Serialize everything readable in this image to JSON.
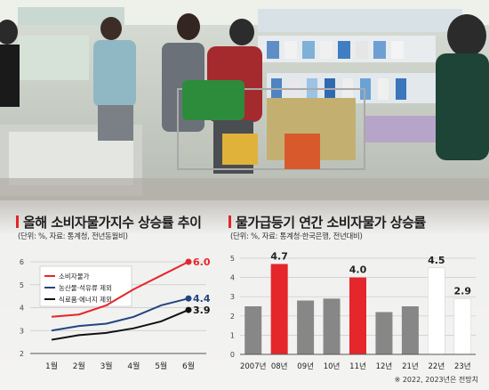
{
  "colors": {
    "red": "#e5262b",
    "navy": "#23467e",
    "black": "#111111",
    "gray": "#878787",
    "white": "#ffffff"
  },
  "left_panel": {
    "title": "올해 소비자물가지수 상승률 추이",
    "subtitle": "(단위: %, 자료: 통계청, 전년동월비)"
  },
  "right_panel": {
    "title": "물가급등기 연간 소비자물가 상승률",
    "subtitle": "(단위: %, 자료: 통계청·한국은행, 전년대비)",
    "footnote": "※ 2022, 2023년은 전망치"
  },
  "chart_data": [
    {
      "type": "line",
      "categories": [
        "1월",
        "2월",
        "3월",
        "4월",
        "5월",
        "6월"
      ],
      "ylim": [
        2,
        6
      ],
      "yticks": [
        "2",
        "3",
        "4",
        "5",
        "6"
      ],
      "grid": true,
      "legend": "top-left",
      "series": [
        {
          "name": "소비자물가",
          "color": "#e5262b",
          "values": [
            3.6,
            3.7,
            4.1,
            4.8,
            5.4,
            6.0
          ],
          "end_label": "6.0"
        },
        {
          "name": "농산물·석유류 제외",
          "color": "#23467e",
          "values": [
            3.0,
            3.2,
            3.3,
            3.6,
            4.1,
            4.4
          ],
          "end_label": "4.4"
        },
        {
          "name": "식료품·에너지 제외",
          "color": "#111111",
          "values": [
            2.6,
            2.8,
            2.9,
            3.1,
            3.4,
            3.9
          ],
          "end_label": "3.9"
        }
      ]
    },
    {
      "type": "bar",
      "categories": [
        "2007년",
        "08년",
        "09년",
        "10년",
        "11년",
        "12년",
        "21년",
        "22년",
        "23년"
      ],
      "values": [
        2.5,
        4.7,
        2.8,
        2.9,
        4.0,
        2.2,
        2.5,
        4.5,
        2.9
      ],
      "colors": [
        "#878787",
        "#e5262b",
        "#878787",
        "#878787",
        "#e5262b",
        "#878787",
        "#878787",
        "#ffffff",
        "#ffffff"
      ],
      "labels": [
        "",
        "4.7",
        "",
        "",
        "4.0",
        "",
        "",
        "4.5",
        "2.9"
      ],
      "ylim": [
        0,
        5
      ],
      "yticks": [
        "0",
        "1",
        "2",
        "3",
        "4",
        "5"
      ],
      "grid": true
    }
  ]
}
